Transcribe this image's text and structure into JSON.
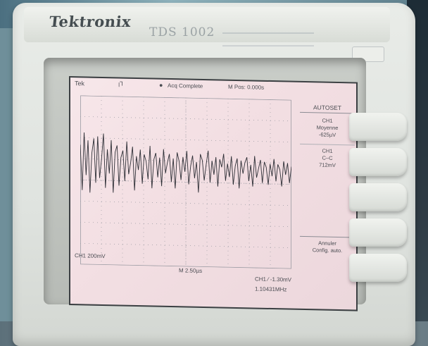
{
  "brand": "Tektronix",
  "model": "TDS 1002",
  "screen": {
    "status_left": "Tek",
    "trigger_glyph": "ꞁꞀ",
    "status": "Acq Complete",
    "position": "M Pos: 0.000s",
    "menu_title": "AUTOSET",
    "menu": [
      {
        "lines": [
          "CH1",
          "Moyenne",
          "-625µV"
        ]
      },
      {
        "lines": [
          "CH1",
          "C–C",
          "712mV"
        ]
      }
    ],
    "cancel": [
      "Annuler",
      "Config. auto."
    ],
    "ch1_scale": "CH1  200mV",
    "timebase": "M 2.50µs",
    "trigger": "CH1 ∕ -1.30mV",
    "frequency": "1.10431MHz"
  },
  "colors": {
    "trace": "#2e2f36",
    "grid": "#9a9aa2",
    "lcd_bg": "#f3dfe3"
  },
  "trace_samples": [
    0.35,
    -0.55,
    0.6,
    -0.25,
    0.45,
    -0.6,
    0.2,
    0.5,
    -0.4,
    0.55,
    -0.3,
    0.1,
    0.62,
    -0.5,
    0.3,
    -0.2,
    0.5,
    -0.6,
    0.25,
    0.4,
    -0.45,
    0.15,
    0.3,
    -0.35,
    0.5,
    -0.2,
    0.05,
    0.4,
    -0.55,
    0.2,
    -0.1,
    0.35,
    -0.4,
    0.25,
    0.1,
    -0.3,
    0.45,
    -0.5,
    0.15,
    0.3,
    -0.25,
    0.2,
    -0.45,
    0.4,
    -0.15,
    0.1,
    0.3,
    -0.35,
    0.2,
    -0.5,
    0.35,
    0.15,
    -0.3,
    0.25,
    -0.1,
    0.4,
    -0.4,
    0.05,
    0.3,
    -0.25,
    0.15,
    -0.6,
    0.35,
    0.2,
    -0.3,
    0.1,
    0.45,
    -0.35,
    0.2,
    -0.15,
    0.3,
    -0.45,
    0.25,
    0.05,
    0.4,
    -0.3,
    0.15,
    -0.2,
    0.35,
    -0.4,
    0.1,
    0.3,
    -0.5,
    0.25,
    -0.1,
    0.2,
    0.35,
    -0.3,
    0.15,
    -0.45,
    0.4,
    -0.2,
    0.05,
    0.3,
    -0.35,
    0.25,
    0.1,
    -0.4,
    0.2,
    -0.15,
    0.35,
    -0.3,
    0.2,
    0.05,
    -0.45,
    0.3,
    -0.1,
    0.25,
    -0.35,
    0.15
  ]
}
